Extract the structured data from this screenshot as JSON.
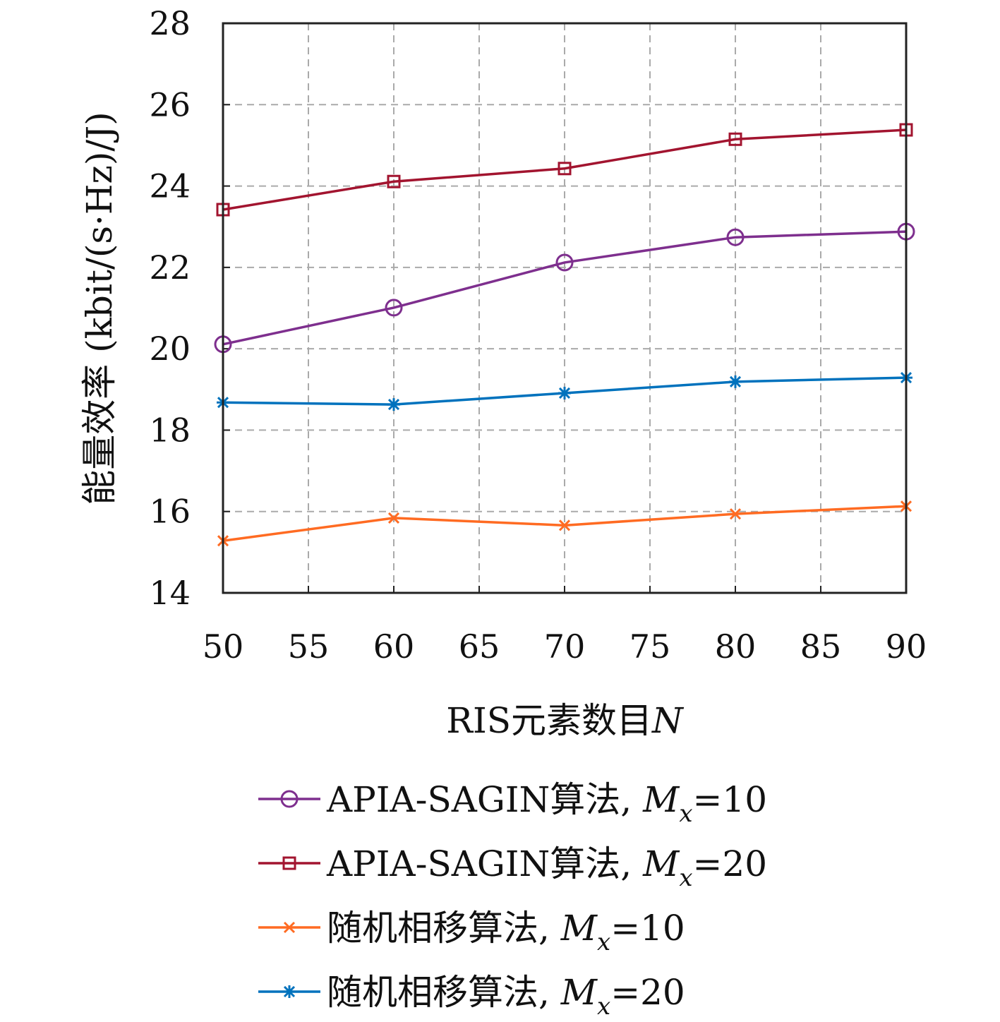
{
  "chart_data": {
    "type": "line",
    "xlabel": "RIS元素数目",
    "xlabel_var": "N",
    "ylabel": "能量效率 (kbit/(s·Hz)/J)",
    "xlim": [
      50,
      90
    ],
    "ylim": [
      14,
      28
    ],
    "xticks": [
      50,
      55,
      60,
      65,
      70,
      75,
      80,
      85,
      90
    ],
    "yticks": [
      14,
      16,
      18,
      20,
      22,
      24,
      26,
      28
    ],
    "grid": true,
    "legend_position": "below",
    "x": [
      50,
      60,
      70,
      80,
      90
    ],
    "series": [
      {
        "name": "APIA-SAGIN算法, Mx=10",
        "label_prefix": "APIA-SAGIN算法, ",
        "var": "M",
        "sub": "x",
        "suffix": "=10",
        "color": "#7E2F8E",
        "marker": "circle",
        "values": [
          20.11,
          21.01,
          22.12,
          22.74,
          22.88
        ]
      },
      {
        "name": "APIA-SAGIN算法, Mx=20",
        "label_prefix": "APIA-SAGIN算法, ",
        "var": "M",
        "sub": "x",
        "suffix": "=20",
        "color": "#A2142F",
        "marker": "square",
        "values": [
          23.42,
          24.11,
          24.43,
          25.15,
          25.38
        ]
      },
      {
        "name": "随机相移算法, Mx=10",
        "label_prefix": "随机相移算法, ",
        "var": "M",
        "sub": "x",
        "suffix": "=10",
        "color": "#FF6B22",
        "marker": "x",
        "values": [
          15.28,
          15.84,
          15.66,
          15.94,
          16.13
        ]
      },
      {
        "name": "随机相移算法, Mx=20",
        "label_prefix": "随机相移算法, ",
        "var": "M",
        "sub": "x",
        "suffix": "=20",
        "color": "#0072BD",
        "marker": "asterisk",
        "values": [
          18.68,
          18.63,
          18.91,
          19.19,
          19.29
        ]
      }
    ]
  }
}
